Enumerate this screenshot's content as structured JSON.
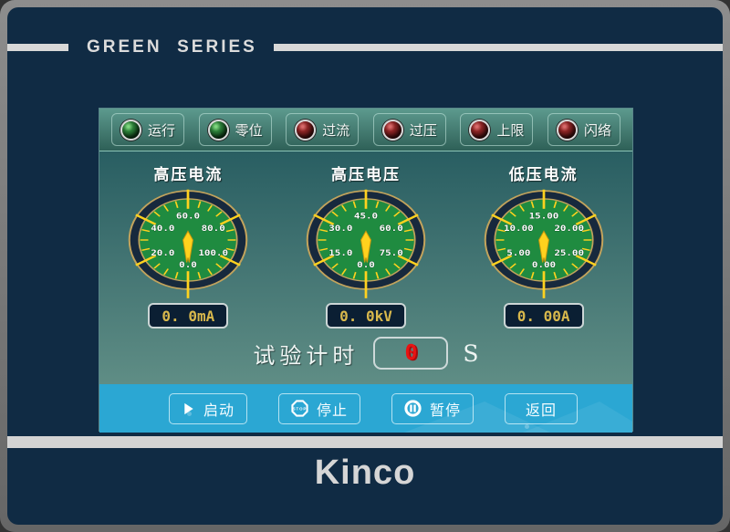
{
  "device": {
    "brand_top": "GREEN  SERIES",
    "brand_bottom": "Kinco"
  },
  "indicators": [
    {
      "label": "运行",
      "color": "green"
    },
    {
      "label": "零位",
      "color": "green"
    },
    {
      "label": "过流",
      "color": "red"
    },
    {
      "label": "过压",
      "color": "red"
    },
    {
      "label": "上限",
      "color": "red"
    },
    {
      "label": "闪络",
      "color": "red"
    }
  ],
  "gauges": [
    {
      "title": "高压电流",
      "scale": [
        "0.0",
        "20.0",
        "40.0",
        "60.0",
        "80.0",
        "100.0"
      ],
      "value": "0. 0mA",
      "needle_value": 0
    },
    {
      "title": "高压电压",
      "scale": [
        "0.0",
        "15.0",
        "30.0",
        "45.0",
        "60.0",
        "75.0"
      ],
      "value": "0. 0kV",
      "needle_value": 0
    },
    {
      "title": "低压电流",
      "scale": [
        "0.00",
        "5.00",
        "10.00",
        "15.00",
        "20.00",
        "25.00"
      ],
      "value": "0. 00A",
      "needle_value": 0
    }
  ],
  "timer": {
    "label": "试验计时",
    "value": "0",
    "unit": "S"
  },
  "toolbar": {
    "buttons": [
      {
        "label": "启动",
        "icon": "play"
      },
      {
        "label": "停止",
        "icon": "stop"
      },
      {
        "label": "暂停",
        "icon": "pause"
      },
      {
        "label": "返回",
        "icon": "none"
      }
    ]
  },
  "colors": {
    "bezel_navy": "#102b44",
    "frame_gray": "#7a7a7a",
    "panel_teal_top": "#295e62",
    "panel_teal_bottom": "#5f8d85",
    "toolbar_blue": "#2ba7d3",
    "dial_face_green": "#1f8b40",
    "dial_ring_navy": "#17293d",
    "dial_gold": "#c2a35c",
    "tick_yellow": "#ffd21e",
    "value_text_gold": "#d8b84c",
    "led_green": "#2c7d38",
    "led_red": "#8a2424",
    "timer_red": "#e81313"
  }
}
